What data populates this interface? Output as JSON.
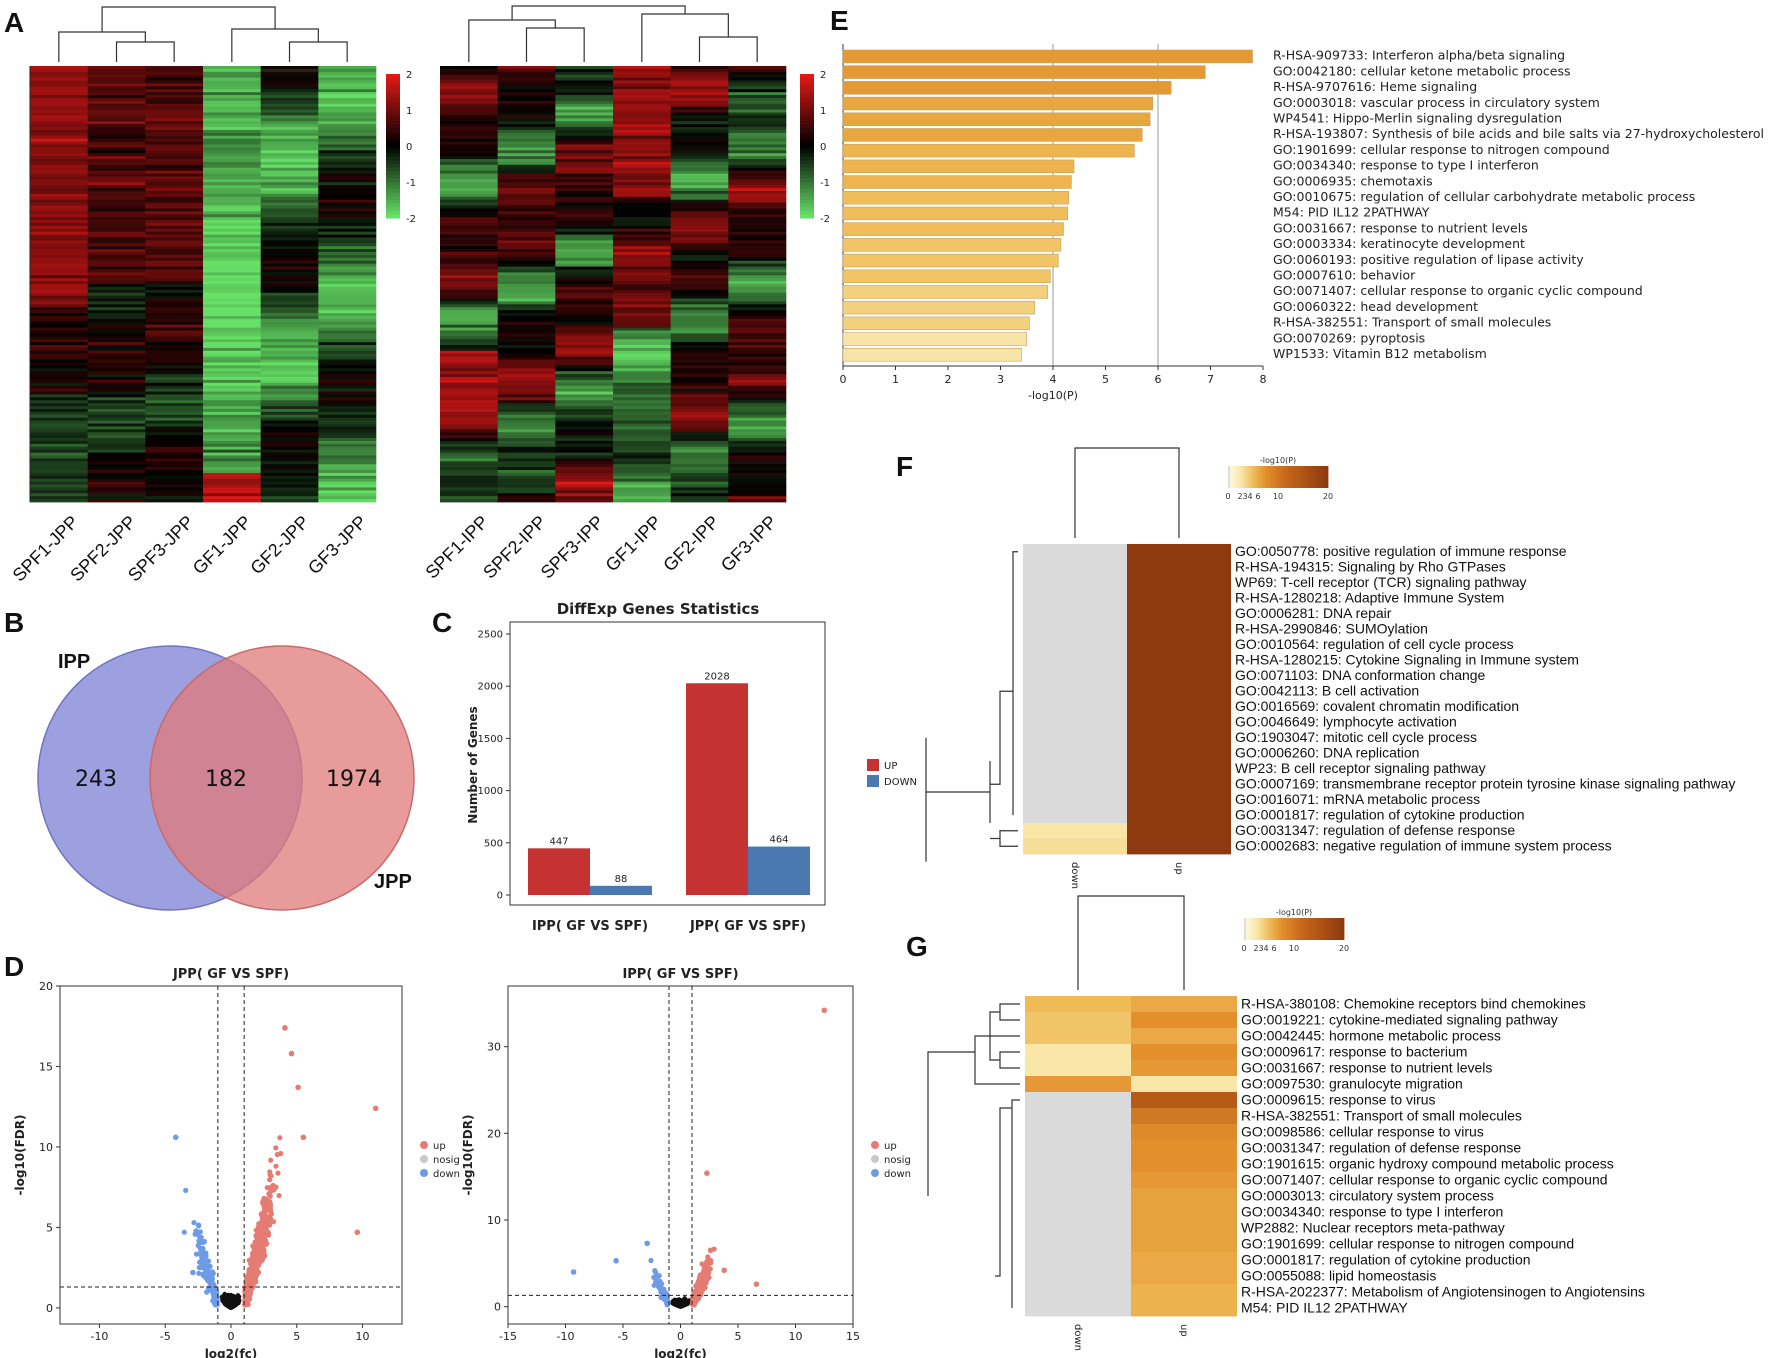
{
  "panels": {
    "a": "A",
    "b": "B",
    "c": "C",
    "d": "D",
    "e": "E",
    "f": "F",
    "g": "G"
  },
  "chart_data": [
    {
      "type": "heatmap",
      "panel": "A-left",
      "columns": [
        "SPF1-JPP",
        "SPF2-JPP",
        "SPF3-JPP",
        "GF1-JPP",
        "GF2-JPP",
        "GF3-JPP"
      ],
      "scale": {
        "min": -2,
        "max": 2,
        "ticks": [
          "2",
          "1",
          "0",
          "-1",
          "-2"
        ],
        "low_color": "#66e066",
        "mid_color": "#000000",
        "high_color": "#e01818"
      }
    },
    {
      "type": "heatmap",
      "panel": "A-right",
      "columns": [
        "SPF1-IPP",
        "SPF2-IPP",
        "SPF3-IPP",
        "GF1-IPP",
        "GF2-IPP",
        "GF3-IPP"
      ],
      "scale": {
        "min": -2,
        "max": 2,
        "ticks": [
          "2",
          "1",
          "0",
          "-1",
          "-2"
        ],
        "low_color": "#66e066",
        "mid_color": "#000000",
        "high_color": "#e01818"
      }
    },
    {
      "type": "venn",
      "panel": "B",
      "sets": [
        "IPP",
        "JPP"
      ],
      "only_a": "243",
      "both": "182",
      "only_b": "1974",
      "colors": {
        "a": "#8c8fd9",
        "b": "#e28585"
      }
    },
    {
      "type": "bar",
      "panel": "C",
      "title": "DiffExp Genes Statistics",
      "ylabel": "Number of Genes",
      "categories": [
        "IPP( GF VS SPF)",
        "JPP( GF VS SPF)"
      ],
      "series": [
        {
          "name": "UP",
          "values": [
            447,
            2028
          ],
          "color": "#c43232"
        },
        {
          "name": "DOWN",
          "values": [
            88,
            464
          ],
          "color": "#4b78b0"
        }
      ],
      "ylim": [
        0,
        2500
      ],
      "yticks": [
        0,
        500,
        1000,
        1500,
        2000,
        2500
      ]
    },
    {
      "type": "scatter",
      "panel": "D-left",
      "title": "JPP( GF VS SPF)",
      "xlabel": "log2(fc)",
      "ylabel": "-log10(FDR)",
      "xlim": [
        -13,
        13
      ],
      "ylim": [
        -1,
        20
      ],
      "xticks": [
        -10,
        -5,
        0,
        5,
        10
      ],
      "yticks": [
        0,
        5,
        10,
        15,
        20
      ],
      "vlines": [
        -1,
        1
      ],
      "hline": 1.3,
      "legend": [
        "up",
        "nosig",
        "down"
      ],
      "colors": {
        "up": "#e57c73",
        "nosig": "#c8c8c8",
        "down": "#6e9be8",
        "black": "#111111"
      },
      "outliers": [
        [
          11,
          12.4
        ],
        [
          9.6,
          4.7
        ],
        [
          -2.9,
          2.2
        ],
        [
          -4.2,
          10.6
        ],
        [
          5.1,
          13.7
        ],
        [
          4.1,
          17.4
        ],
        [
          4.6,
          15.8
        ],
        [
          5.5,
          10.6
        ]
      ]
    },
    {
      "type": "scatter",
      "panel": "D-right",
      "title": "IPP( GF VS SPF)",
      "xlabel": "log2(fc)",
      "ylabel": "-log10(FDR)",
      "xlim": [
        -15,
        15
      ],
      "ylim": [
        -2,
        37
      ],
      "xticks": [
        -15,
        -10,
        -5,
        0,
        5,
        10,
        15
      ],
      "yticks": [
        0,
        10,
        20,
        30
      ],
      "vlines": [
        -1,
        1
      ],
      "hline": 1.3,
      "legend": [
        "up",
        "nosig",
        "down"
      ],
      "colors": {
        "up": "#e57c73",
        "nosig": "#c8c8c8",
        "down": "#6e9be8",
        "black": "#111111"
      },
      "outliers": [
        [
          12.5,
          34.2
        ],
        [
          -9.3,
          4.0
        ],
        [
          6.6,
          2.6
        ],
        [
          2.3,
          15.4
        ],
        [
          3.8,
          4.2
        ],
        [
          -5.6,
          5.3
        ],
        [
          -2.9,
          7.3
        ]
      ]
    },
    {
      "type": "bar",
      "orientation": "horizontal",
      "panel": "E",
      "xlabel": "-log10(P)",
      "xlim": [
        0,
        8
      ],
      "xticks": [
        0,
        1,
        2,
        3,
        4,
        5,
        6,
        7,
        8
      ],
      "terms": [
        "R-HSA-909733: Interferon alpha/beta signaling",
        "GO:0042180: cellular ketone metabolic process",
        "R-HSA-9707616: Heme signaling",
        "GO:0003018: vascular process in circulatory system",
        "WP4541: Hippo-Merlin signaling dysregulation",
        "R-HSA-193807: Synthesis of bile acids and bile salts via 27-hydroxycholesterol",
        "GO:1901699: cellular response to nitrogen compound",
        "GO:0034340: response to type I interferon",
        "GO:0006935: chemotaxis",
        "GO:0010675: regulation of cellular carbohydrate metabolic process",
        "M54: PID IL12 2PATHWAY",
        "GO:0031667: response to nutrient levels",
        "GO:0003334: keratinocyte development",
        "GO:0060193: positive regulation of lipase activity",
        "GO:0007610: behavior",
        "GO:0071407: cellular response to organic cyclic compound",
        "GO:0060322: head development",
        "R-HSA-382551: Transport of small molecules",
        "GO:0070269: pyroptosis",
        "WP1533: Vitamin B12 metabolism"
      ],
      "values": [
        7.8,
        6.9,
        6.25,
        5.9,
        5.85,
        5.7,
        5.55,
        4.4,
        4.35,
        4.3,
        4.28,
        4.2,
        4.15,
        4.1,
        3.95,
        3.9,
        3.65,
        3.55,
        3.5,
        3.4
      ],
      "colors": [
        "#e39a35",
        "#e8a63f",
        "#eeb44d",
        "#f0bd5a",
        "#f1c565",
        "#f3d07d",
        "#f8e3a8"
      ]
    },
    {
      "type": "heatmap",
      "panel": "F",
      "colorbar_title": "-log10(P)",
      "colorbar_ticks": [
        "0",
        "2",
        "3",
        "4",
        "6",
        "10",
        "20"
      ],
      "columns": [
        "down",
        "up"
      ],
      "rows": [
        "GO:0050778: positive regulation of immune response",
        "R-HSA-194315: Signaling by Rho GTPases",
        "WP69: T-cell receptor (TCR) signaling pathway",
        "R-HSA-1280218: Adaptive Immune System",
        "GO:0006281: DNA repair",
        "R-HSA-2990846: SUMOylation",
        "GO:0010564: regulation of cell cycle process",
        "R-HSA-1280215: Cytokine Signaling in Immune system",
        "GO:0071103: DNA conformation change",
        "GO:0042113: B cell activation",
        "GO:0016569: covalent chromatin modification",
        "GO:0046649: lymphocyte activation",
        "GO:1903047: mitotic cell cycle process",
        "GO:0006260: DNA replication",
        "WP23: B cell receptor signaling pathway",
        "GO:0007169: transmembrane receptor protein tyrosine kinase signaling pathway",
        "GO:0016071: mRNA metabolic process",
        "GO:0001817: regulation of cytokine production",
        "GO:0031347: regulation of defense response",
        "GO:0002683: negative regulation of immune system process"
      ],
      "values_down": [
        0,
        0,
        0,
        0,
        0,
        0,
        0,
        0,
        0,
        0,
        0,
        0,
        0,
        0,
        0,
        0,
        0,
        0,
        2.5,
        3
      ],
      "values_up": [
        20,
        20,
        20,
        20,
        20,
        20,
        20,
        20,
        20,
        20,
        20,
        20,
        20,
        20,
        20,
        20,
        20,
        20,
        20,
        20
      ]
    },
    {
      "type": "heatmap",
      "panel": "G",
      "colorbar_title": "-log10(P)",
      "colorbar_ticks": [
        "0",
        "2",
        "3",
        "4",
        "6",
        "10",
        "20"
      ],
      "columns": [
        "down",
        "up"
      ],
      "rows": [
        "R-HSA-380108: Chemokine receptors bind chemokines",
        "GO:0019221: cytokine-mediated signaling pathway",
        "GO:0042445: hormone metabolic process",
        "GO:0009617: response to bacterium",
        "GO:0031667: response to nutrient levels",
        "GO:0097530: granulocyte migration",
        "GO:0009615: response to virus",
        "R-HSA-382551: Transport of small molecules",
        "GO:0098586: cellular response to virus",
        "GO:0031347: regulation of defense response",
        "GO:1901615: organic hydroxy compound metabolic process",
        "GO:0071407: cellular response to organic cyclic compound",
        "GO:0003013: circulatory system process",
        "GO:0034340: response to type I interferon",
        "WP2882: Nuclear receptors meta-pathway",
        "GO:1901699: cellular response to nitrogen compound",
        "GO:0001817: regulation of cytokine production",
        "GO:0055088: lipid homeostasis",
        "R-HSA-2022377: Metabolism of Angiotensinogen to Angiotensins",
        "M54: PID IL12 2PATHWAY"
      ],
      "values_down": [
        5,
        4.5,
        4.5,
        2.5,
        2.5,
        7,
        0,
        0,
        0,
        0,
        0,
        0,
        0,
        0,
        0,
        0,
        0,
        0,
        0,
        0
      ],
      "values_up": [
        6,
        7.5,
        6,
        7.5,
        7,
        2.5,
        14,
        10,
        8,
        7.5,
        7.5,
        7,
        6.5,
        6.5,
        6.5,
        6.5,
        6,
        6,
        5.5,
        5.5
      ]
    }
  ]
}
